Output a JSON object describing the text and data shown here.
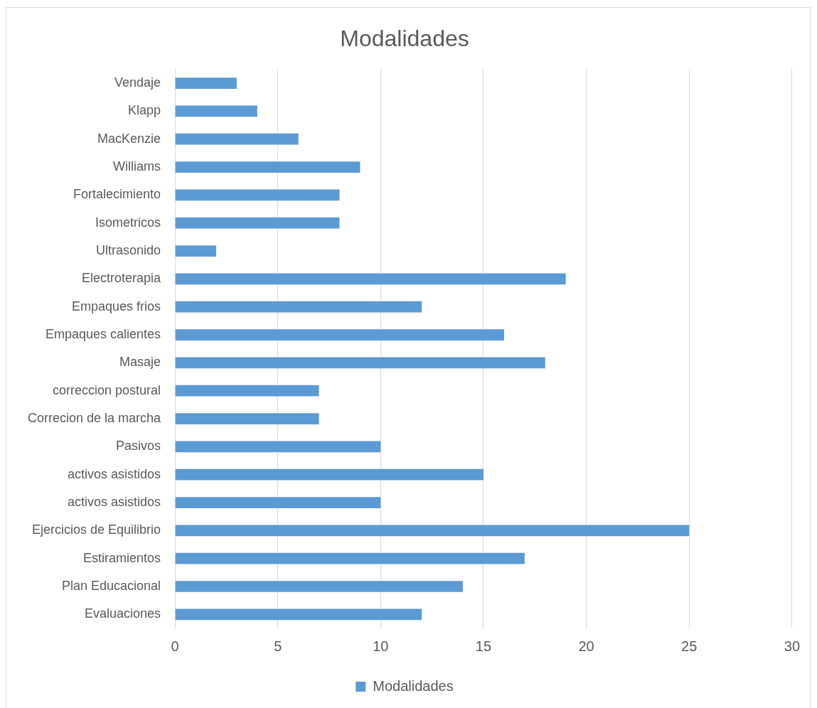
{
  "chart_data": {
    "type": "bar",
    "orientation": "horizontal",
    "title": "Modalidades",
    "categories": [
      "Vendaje",
      "Klapp",
      "MacKenzie",
      "Williams",
      "Fortalecimiento",
      "Isometricos",
      "Ultrasonido",
      "Electroterapia",
      "Empaques frios",
      "Empaques calientes",
      "Masaje",
      "correccion postural",
      "Correcion de la marcha",
      "Pasivos",
      "activos asistidos",
      "activos asistidos",
      "Ejercicios de Equilibrio",
      "Estiramientos",
      "Plan Educacional",
      "Evaluaciones"
    ],
    "series": [
      {
        "name": "Modalidades",
        "color": "#5b9bd5",
        "values": [
          3,
          4,
          6,
          9,
          8,
          8,
          2,
          19,
          12,
          16,
          18,
          7,
          7,
          10,
          15,
          10,
          25,
          17,
          14,
          12
        ]
      }
    ],
    "xlim": [
      0,
      30
    ],
    "xticks": [
      0,
      5,
      10,
      15,
      20,
      25,
      30
    ],
    "grid": "x",
    "legend": "bottom"
  }
}
